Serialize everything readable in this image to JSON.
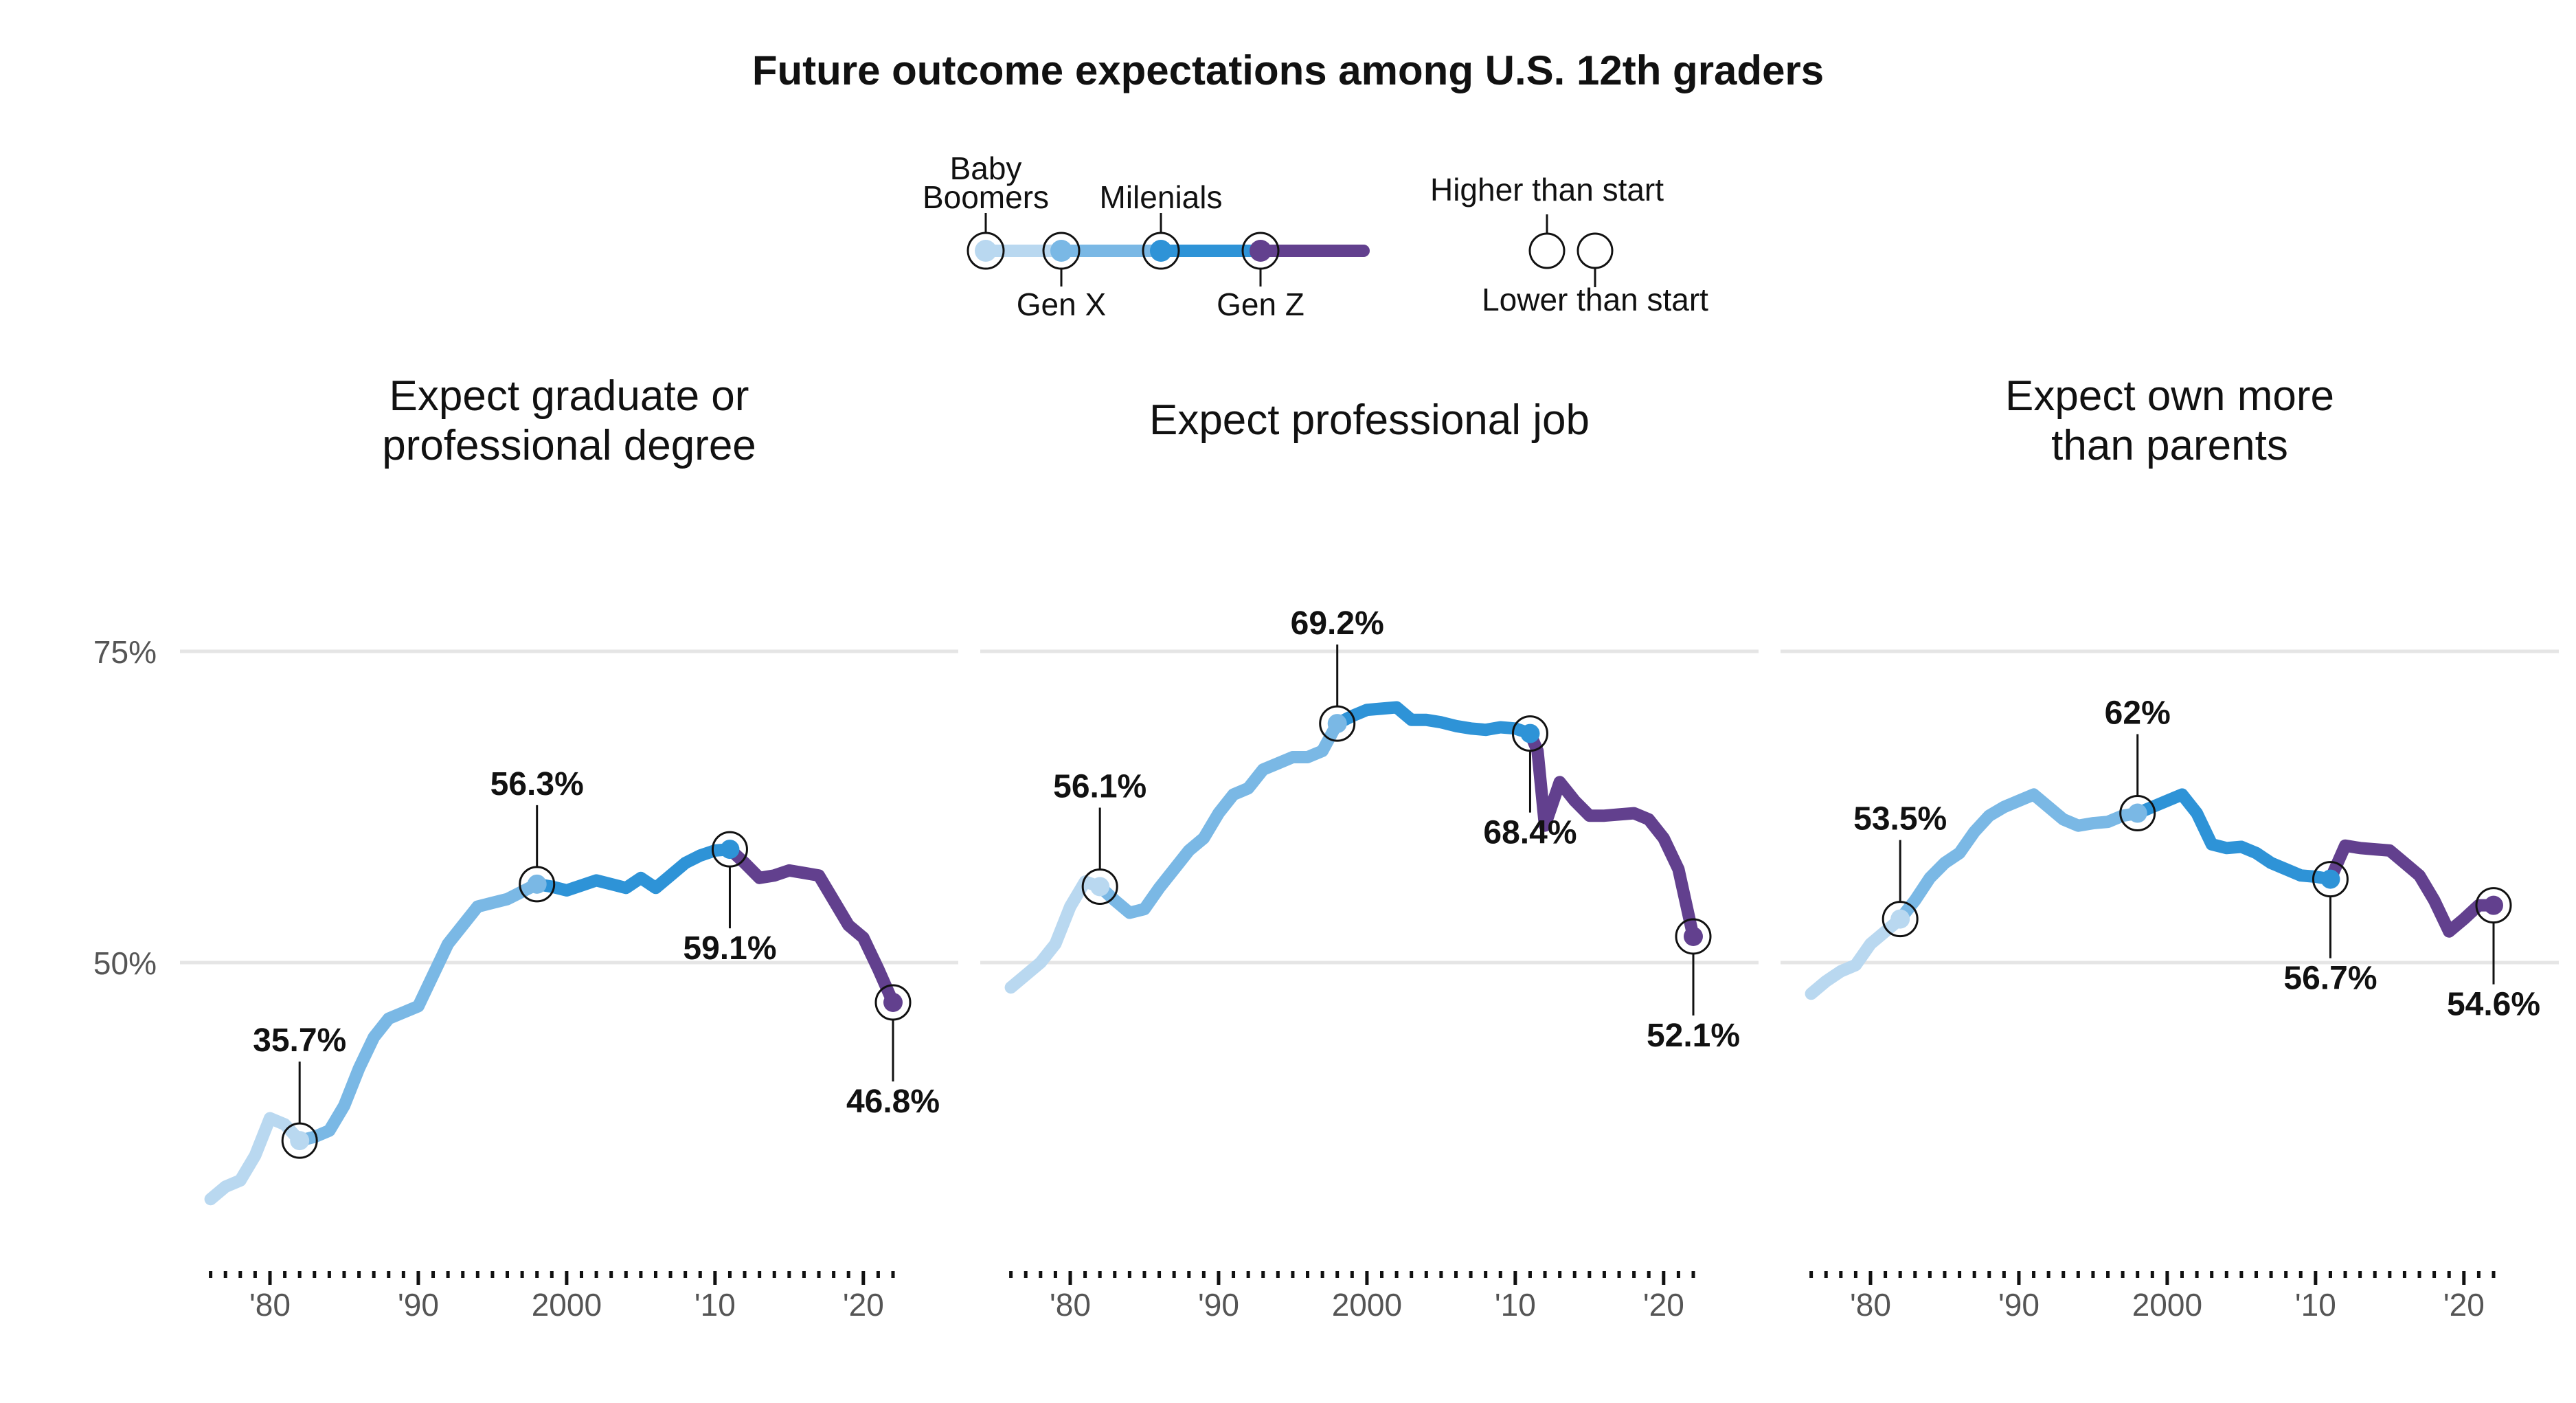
{
  "title": "Future outcome expectations among U.S. 12th graders",
  "legend": {
    "generations": [
      "Baby Boomers",
      "Gen X",
      "Milenials",
      "Gen Z"
    ],
    "generation_label_lines": [
      [
        "Baby",
        "Boomers"
      ],
      [
        "Gen X"
      ],
      [
        "Milenials"
      ],
      [
        "Gen Z"
      ]
    ],
    "higher_label": "Higher than start",
    "lower_label": "Lower than start"
  },
  "colors": {
    "baby_boomers": "#b9d8f0",
    "gen_x": "#7ab8e5",
    "milenials": "#2e93d7",
    "gen_z": "#62408e",
    "gridline": "#e5e5e5",
    "axis_text": "#555555"
  },
  "x_tick_labels": [
    "'80",
    "'90",
    "2000",
    "'10",
    "'20"
  ],
  "y_tick_labels": [
    "75%",
    "50%"
  ],
  "chart_data": [
    {
      "type": "line",
      "title": "Expect graduate or professional degree",
      "title_lines": [
        "Expect graduate or",
        "professional degree"
      ],
      "xlim": [
        1975,
        2024
      ],
      "ylim": [
        25,
        80
      ],
      "generation_start_years": [
        1976,
        1982,
        1998,
        2011
      ],
      "series": [
        {
          "x": [
            1976,
            1977,
            1978,
            1979,
            1980,
            1981,
            1982,
            1983,
            1984,
            1985,
            1986,
            1987,
            1988,
            1989,
            1990,
            1991,
            1992,
            1993,
            1994,
            1995,
            1996,
            1997,
            1998,
            1999,
            2000,
            2001,
            2002,
            2003,
            2004,
            2005,
            2006,
            2007,
            2008,
            2009,
            2010,
            2011,
            2012,
            2013,
            2014,
            2015,
            2016,
            2017,
            2018,
            2019,
            2020,
            2021,
            2022
          ],
          "y": [
            31,
            32,
            32.5,
            34.5,
            37.5,
            37,
            35.7,
            36,
            36.5,
            38.5,
            41.5,
            44,
            45.5,
            46,
            46.5,
            49,
            51.5,
            53,
            54.5,
            54.8,
            55.1,
            55.7,
            56.3,
            56.1,
            55.8,
            56.2,
            56.6,
            56.3,
            56,
            56.8,
            56,
            57,
            58,
            58.6,
            59,
            59.1,
            58,
            56.8,
            57,
            57.4,
            57.2,
            57,
            55,
            53,
            52,
            49.5,
            46.8
          ]
        }
      ],
      "annotations": [
        {
          "x": 1982,
          "y": 35.7,
          "label": "35.7%",
          "position": "above"
        },
        {
          "x": 1998,
          "y": 56.3,
          "label": "56.3%",
          "position": "above"
        },
        {
          "x": 2011,
          "y": 59.1,
          "label": "59.1%",
          "position": "below"
        },
        {
          "x": 2022,
          "y": 46.8,
          "label": "46.8%",
          "position": "below"
        }
      ]
    },
    {
      "type": "line",
      "title": "Expect professional job",
      "title_lines": [
        "Expect professional job"
      ],
      "xlim": [
        1975,
        2024
      ],
      "ylim": [
        25,
        80
      ],
      "generation_start_years": [
        1976,
        1982,
        1998,
        2011
      ],
      "series": [
        {
          "x": [
            1976,
            1977,
            1978,
            1979,
            1980,
            1981,
            1982,
            1983,
            1984,
            1985,
            1986,
            1987,
            1988,
            1989,
            1990,
            1991,
            1992,
            1993,
            1994,
            1995,
            1996,
            1997,
            1998,
            1999,
            2000,
            2001,
            2002,
            2003,
            2004,
            2005,
            2006,
            2007,
            2008,
            2009,
            2010,
            2011,
            2011.5,
            2012,
            2013,
            2014,
            2015,
            2016,
            2017,
            2018,
            2019,
            2020,
            2021,
            2022
          ],
          "y": [
            48,
            49,
            50,
            51.5,
            54.5,
            56.5,
            56.1,
            55,
            54,
            54.3,
            56,
            57.5,
            59,
            60,
            62,
            63.5,
            64,
            65.5,
            66,
            66.5,
            66.5,
            67,
            69.2,
            69.8,
            70.3,
            70.4,
            70.5,
            69.5,
            69.5,
            69.3,
            69,
            68.8,
            68.7,
            68.9,
            68.8,
            68.4,
            67,
            61,
            64.5,
            63,
            61.8,
            61.8,
            61.9,
            62,
            61.5,
            60,
            57.5,
            52.1
          ]
        }
      ],
      "annotations": [
        {
          "x": 1982,
          "y": 56.1,
          "label": "56.1%",
          "position": "above"
        },
        {
          "x": 1998,
          "y": 69.2,
          "label": "69.2%",
          "position": "above"
        },
        {
          "x": 2011,
          "y": 68.4,
          "label": "68.4%",
          "position": "below"
        },
        {
          "x": 2022,
          "y": 52.1,
          "label": "52.1%",
          "position": "below"
        }
      ]
    },
    {
      "type": "line",
      "title": "Expect own more than parents",
      "title_lines": [
        "Expect own more",
        "than parents"
      ],
      "xlim": [
        1975,
        2024
      ],
      "ylim": [
        25,
        80
      ],
      "generation_start_years": [
        1976,
        1982,
        1998,
        2011
      ],
      "series": [
        {
          "x": [
            1976,
            1977,
            1978,
            1979,
            1980,
            1981,
            1982,
            1983,
            1984,
            1985,
            1986,
            1987,
            1988,
            1989,
            1990,
            1991,
            1992,
            1993,
            1994,
            1995,
            1996,
            1997,
            1998,
            1999,
            2000,
            2001,
            2002,
            2003,
            2004,
            2005,
            2006,
            2007,
            2008,
            2009,
            2010,
            2011,
            2012,
            2013,
            2014,
            2015,
            2016,
            2017,
            2018,
            2019,
            2020,
            2021,
            2022
          ],
          "y": [
            47.5,
            48.5,
            49.3,
            49.8,
            51.5,
            52.5,
            53.5,
            55,
            56.8,
            58,
            58.8,
            60.5,
            61.8,
            62.5,
            63,
            63.5,
            62.5,
            61.5,
            61,
            61.2,
            61.3,
            61.8,
            62,
            62.5,
            63,
            63.5,
            62,
            59.5,
            59.2,
            59.3,
            58.8,
            58,
            57.5,
            57,
            56.9,
            56.7,
            59.4,
            59.2,
            59.1,
            59,
            58,
            57,
            55,
            52.5,
            53.5,
            54.6,
            54.6
          ]
        }
      ],
      "annotations": [
        {
          "x": 1982,
          "y": 53.5,
          "label": "53.5%",
          "position": "above"
        },
        {
          "x": 1998,
          "y": 62,
          "label": "62%",
          "position": "above"
        },
        {
          "x": 2011,
          "y": 56.7,
          "label": "56.7%",
          "position": "below"
        },
        {
          "x": 2022,
          "y": 54.6,
          "label": "54.6%",
          "position": "below"
        }
      ]
    }
  ]
}
